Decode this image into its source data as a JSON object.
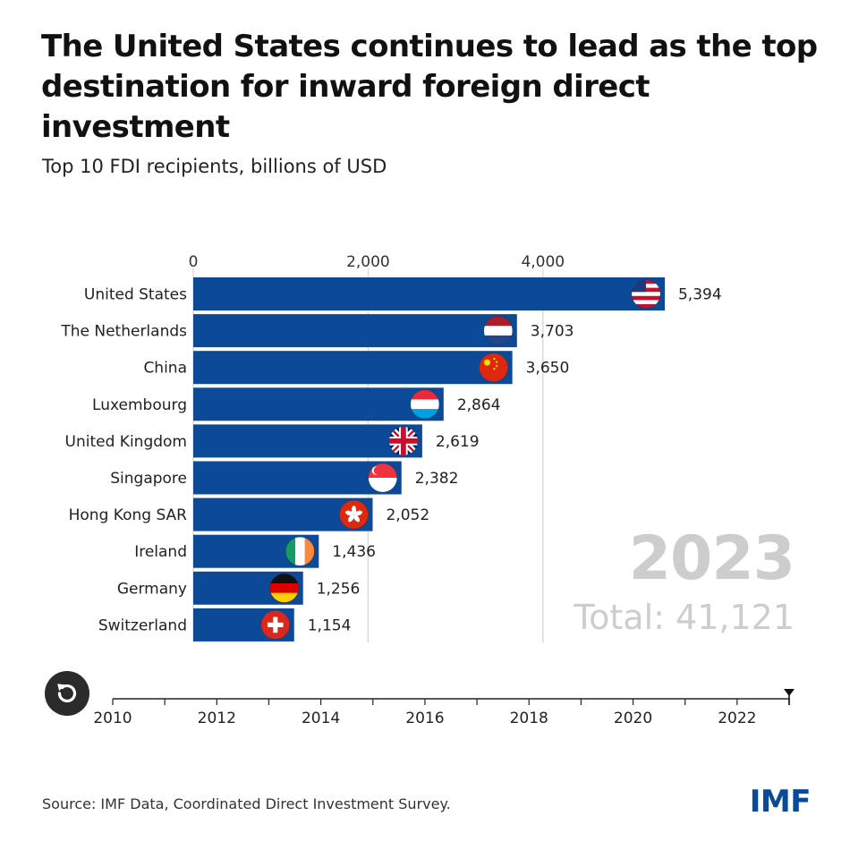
{
  "title": "The United States continues to lead as the top destination for inward foreign direct investment",
  "subtitle": "Top 10 FDI recipients, billions of USD",
  "year_display": "2023",
  "total_display": "Total: 41,121",
  "source": "Source: IMF Data, Coordinated Direct Investment Survey.",
  "logo_text": "IMF",
  "colors": {
    "bar": "#0c4a97",
    "grid": "#d9d9d9",
    "year_watermark": "#cdcdcd",
    "logo": "#0b4a9a"
  },
  "chart_data": {
    "type": "bar",
    "orientation": "horizontal",
    "categories": [
      "United States",
      "The Netherlands",
      "China",
      "Luxembourg",
      "United Kingdom",
      "Singapore",
      "Hong Kong SAR",
      "Ireland",
      "Germany",
      "Switzerland"
    ],
    "values": [
      5394,
      3703,
      3650,
      2864,
      2619,
      2382,
      2052,
      1436,
      1256,
      1154
    ],
    "value_labels": [
      "5,394",
      "3,703",
      "3,650",
      "2,864",
      "2,619",
      "2,382",
      "2,052",
      "1,436",
      "1,256",
      "1,154"
    ],
    "flags": [
      "us-flag-icon",
      "netherlands-flag-icon",
      "china-flag-icon",
      "luxembourg-flag-icon",
      "uk-flag-icon",
      "singapore-flag-icon",
      "hong-kong-flag-icon",
      "ireland-flag-icon",
      "germany-flag-icon",
      "switzerland-flag-icon"
    ],
    "xlim": [
      0,
      5394
    ],
    "xticks": [
      0,
      2000,
      4000
    ],
    "xtick_labels": [
      "0",
      "2,000",
      "4,000"
    ],
    "grid": true,
    "x_axis_position": "top"
  },
  "timeline": {
    "ticks": [
      2010,
      2012,
      2014,
      2016,
      2018,
      2020,
      2022
    ],
    "tick_labels": [
      "2010",
      "2012",
      "2014",
      "2016",
      "2018",
      "2020",
      "2022"
    ],
    "range": [
      2010,
      2023
    ],
    "current_year": 2023
  },
  "controls": {
    "replay_icon": "replay-icon"
  }
}
